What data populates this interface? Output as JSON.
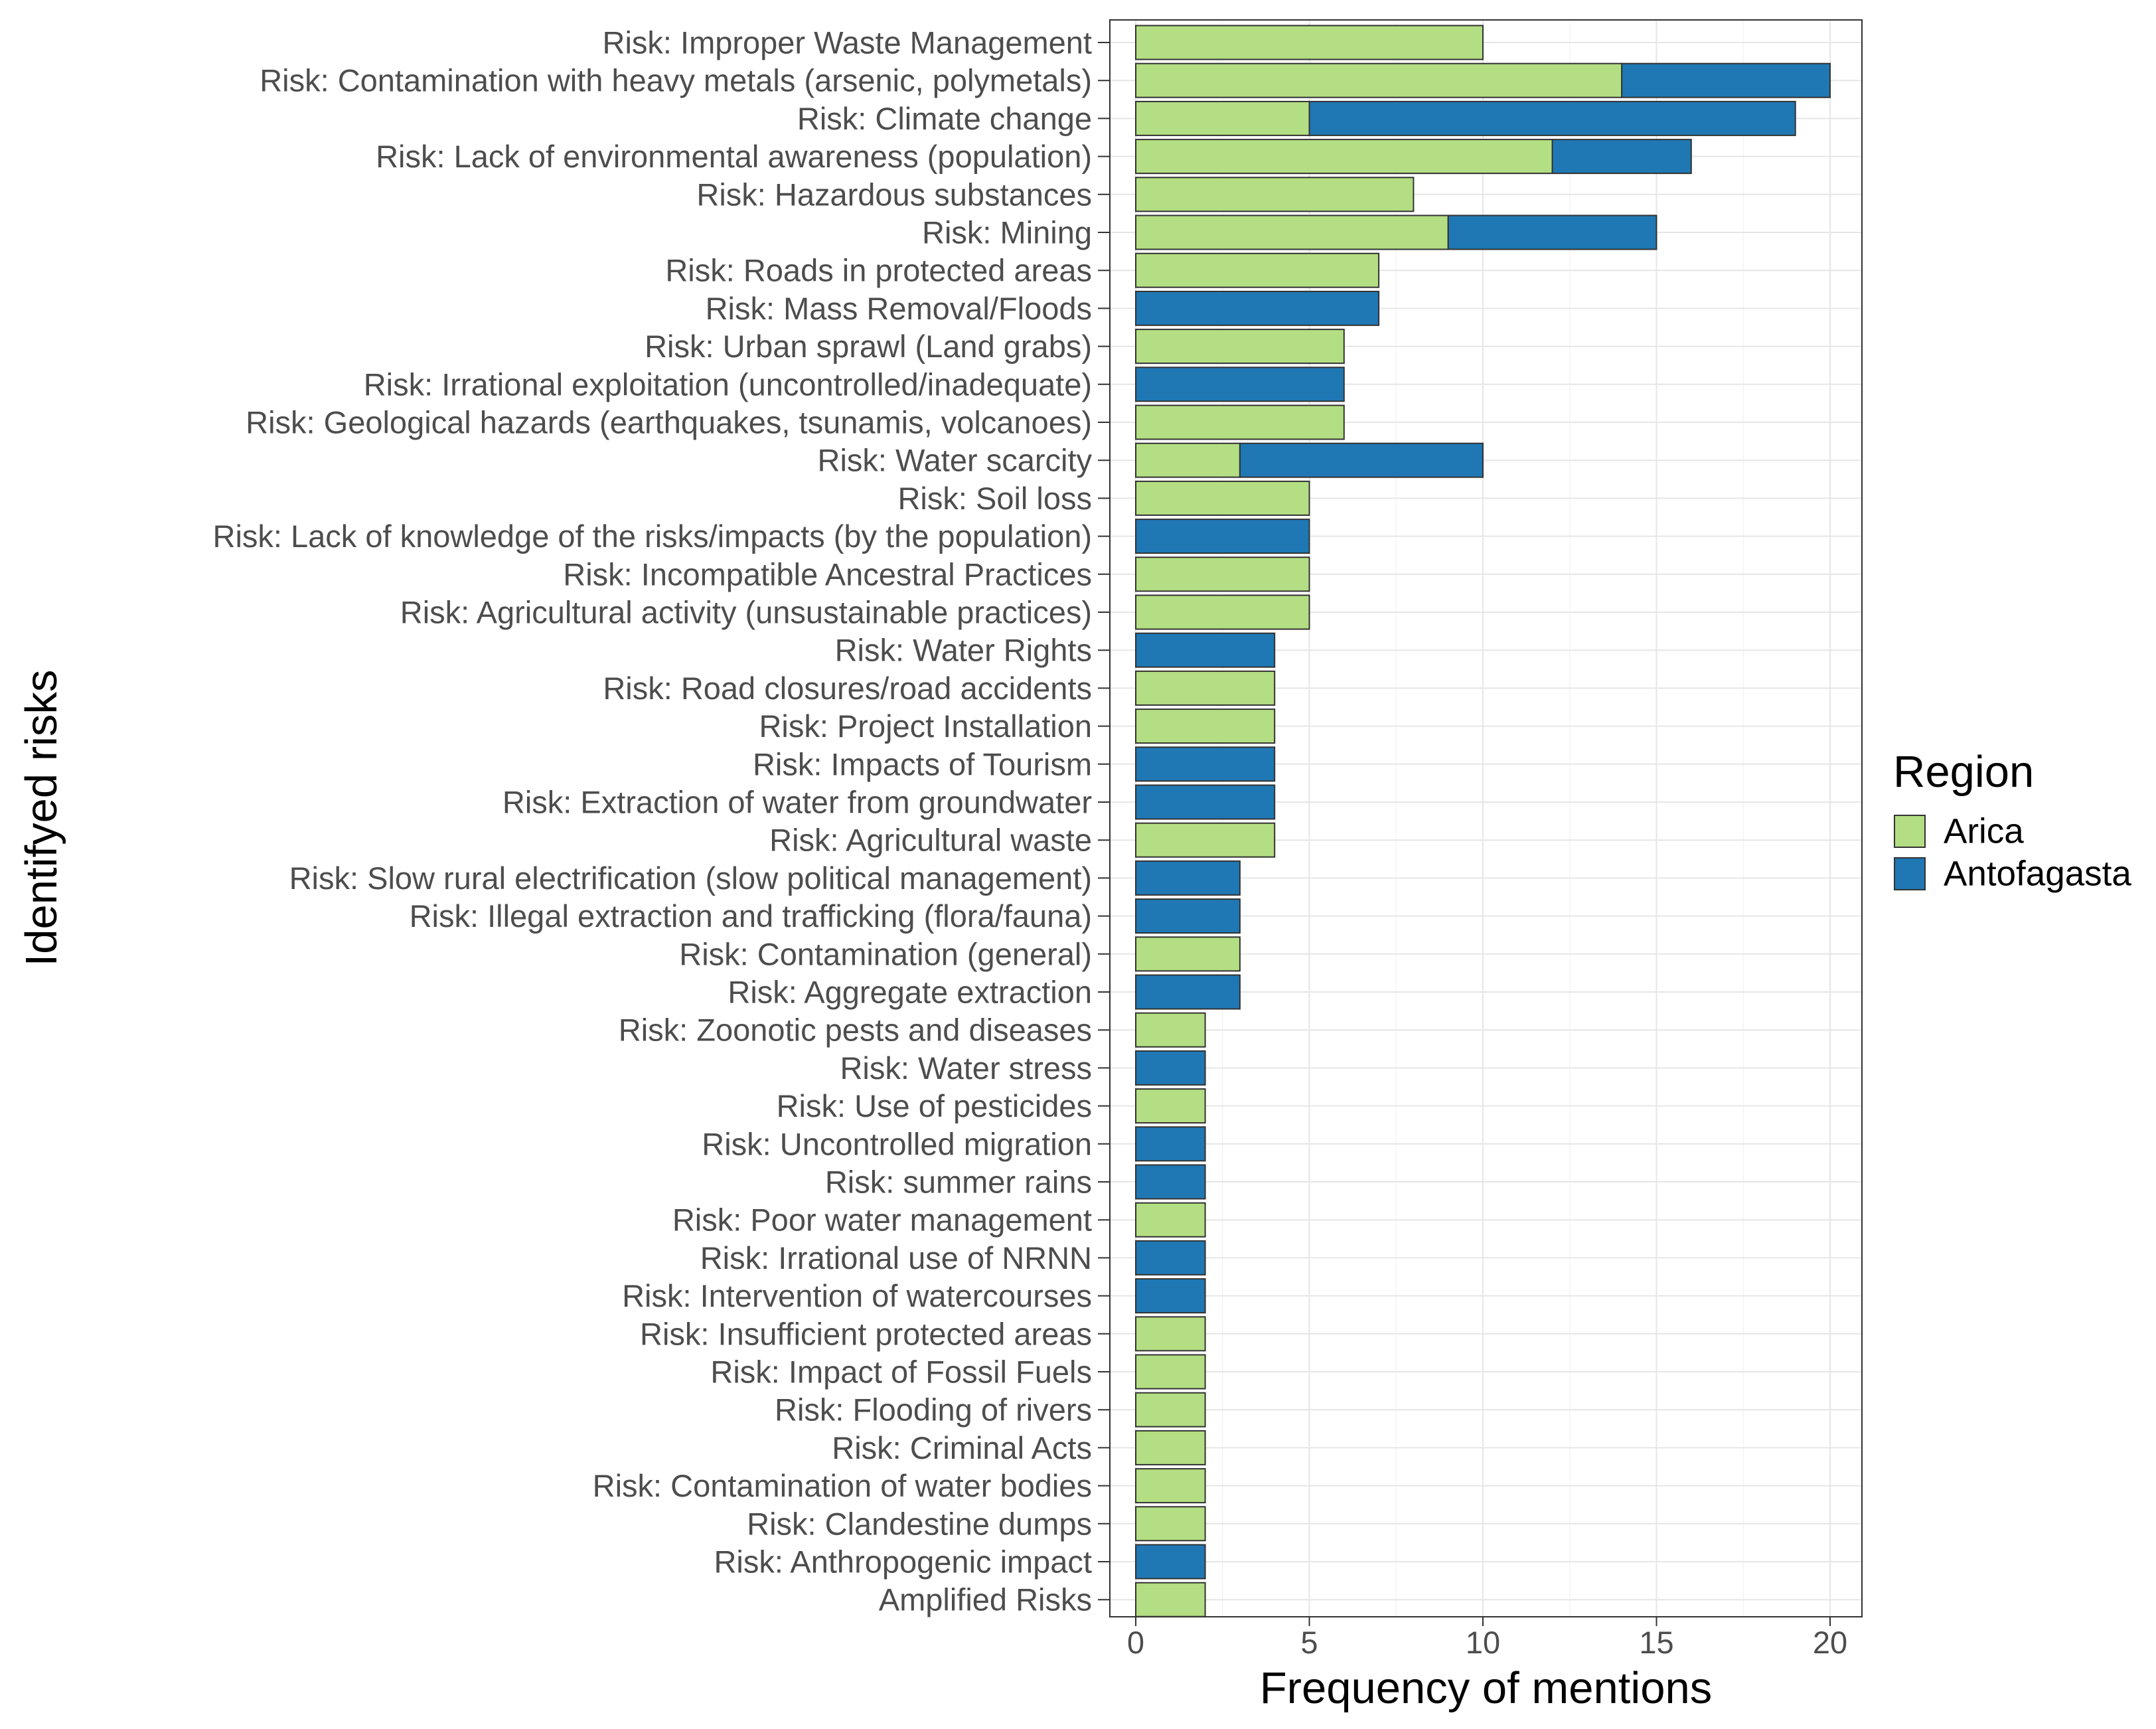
{
  "chart_data": {
    "type": "bar",
    "orientation": "horizontal",
    "stacked": true,
    "title": "",
    "xlabel": "Frequency of mentions",
    "ylabel": "Identifyed risks",
    "xlim": [
      0,
      21
    ],
    "xticks": [
      0,
      5,
      10,
      15,
      20
    ],
    "grid": true,
    "legend_title": "Region",
    "legend_position": "right",
    "categories": [
      "Risk: Improper Waste Management",
      "Risk: Contamination with heavy metals (arsenic, polymetals)",
      "Risk: Climate change",
      "Risk: Lack of environmental awareness (population)",
      "Risk: Hazardous substances",
      "Risk: Mining",
      "Risk: Roads in protected areas",
      "Risk: Mass Removal/Floods",
      "Risk: Urban sprawl (Land grabs)",
      "Risk: Irrational exploitation (uncontrolled/inadequate)",
      "Risk: Geological hazards (earthquakes, tsunamis, volcanoes)",
      "Risk: Water scarcity",
      "Risk: Soil loss",
      "Risk: Lack of knowledge of the risks/impacts (by the population)",
      "Risk: Incompatible Ancestral Practices",
      "Risk: Agricultural activity (unsustainable practices)",
      "Risk: Water Rights",
      "Risk: Road closures/road accidents",
      "Risk: Project Installation",
      "Risk: Impacts of Tourism",
      "Risk: Extraction of water from groundwater",
      "Risk: Agricultural waste",
      "Risk: Slow rural electrification (slow political management)",
      "Risk: Illegal extraction and trafficking (flora/fauna)",
      "Risk: Contamination (general)",
      "Risk: Aggregate extraction",
      "Risk: Zoonotic pests and diseases",
      "Risk: Water stress",
      "Risk: Use of pesticides",
      "Risk: Uncontrolled migration",
      "Risk: summer rains",
      "Risk: Poor water management",
      "Risk: Irrational use of NRNN",
      "Risk: Intervention of watercourses",
      "Risk: Insufficient protected areas",
      "Risk: Impact of Fossil Fuels",
      "Risk: Flooding of rivers",
      "Risk: Criminal Acts",
      "Risk: Contamination of water bodies",
      "Risk: Clandestine dumps",
      "Risk: Anthropogenic impact",
      "Amplified Risks"
    ],
    "series": [
      {
        "name": "Arica",
        "color": "#b3de83",
        "values": [
          10,
          14,
          5,
          12,
          8,
          9,
          7,
          0,
          6,
          0,
          6,
          3,
          5,
          0,
          5,
          5,
          0,
          4,
          4,
          0,
          0,
          4,
          0,
          0,
          3,
          0,
          2,
          0,
          2,
          0,
          0,
          2,
          0,
          0,
          2,
          2,
          2,
          2,
          2,
          2,
          0,
          2
        ]
      },
      {
        "name": "Antofagasta",
        "color": "#1f78b4",
        "values": [
          0,
          6,
          14,
          4,
          0,
          6,
          0,
          7,
          0,
          6,
          0,
          7,
          0,
          5,
          0,
          0,
          4,
          0,
          0,
          4,
          4,
          0,
          3,
          3,
          0,
          3,
          0,
          2,
          0,
          2,
          2,
          0,
          2,
          2,
          0,
          0,
          0,
          0,
          0,
          0,
          2,
          0
        ]
      }
    ]
  }
}
